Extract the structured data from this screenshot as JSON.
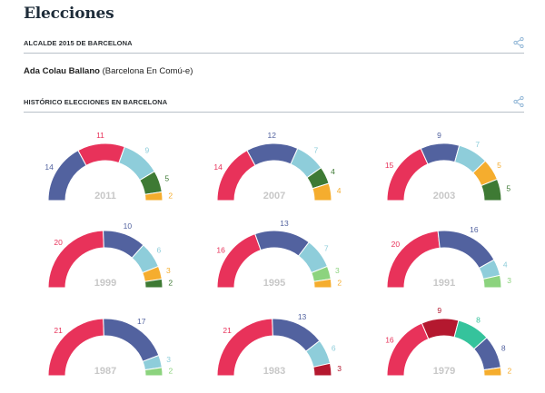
{
  "page": {
    "title": "Elecciones",
    "section1_label": "ALCALDE 2015 DE BARCELONA",
    "mayor_name": "Ada Colau Ballano",
    "mayor_party": "(Barcelona En Comú-e)",
    "section2_label": "HISTÓRICO ELECCIONES EN BARCELONA",
    "share_icon": "share-icon"
  },
  "colors": {
    "red": "#e8325a",
    "blue": "#52629f",
    "lightblue": "#8ecdda",
    "darkgreen": "#3e7a34",
    "orange": "#f5ad2e",
    "green": "#8cd37e",
    "darkred": "#b4182f",
    "teal": "#35c39c",
    "year": "#c8c8c8"
  },
  "chart_data": [
    {
      "type": "pie",
      "title": "2011",
      "seats": [
        {
          "value": 14,
          "color": "blue"
        },
        {
          "value": 11,
          "color": "red"
        },
        {
          "value": 9,
          "color": "lightblue"
        },
        {
          "value": 5,
          "color": "darkgreen"
        },
        {
          "value": 2,
          "color": "orange"
        }
      ]
    },
    {
      "type": "pie",
      "title": "2007",
      "seats": [
        {
          "value": 14,
          "color": "red"
        },
        {
          "value": 12,
          "color": "blue"
        },
        {
          "value": 7,
          "color": "lightblue"
        },
        {
          "value": 4,
          "color": "darkgreen"
        },
        {
          "value": 4,
          "color": "orange"
        }
      ]
    },
    {
      "type": "pie",
      "title": "2003",
      "seats": [
        {
          "value": 15,
          "color": "red"
        },
        {
          "value": 9,
          "color": "blue"
        },
        {
          "value": 7,
          "color": "lightblue"
        },
        {
          "value": 5,
          "color": "orange"
        },
        {
          "value": 5,
          "color": "darkgreen"
        }
      ]
    },
    {
      "type": "pie",
      "title": "1999",
      "seats": [
        {
          "value": 20,
          "color": "red"
        },
        {
          "value": 10,
          "color": "blue"
        },
        {
          "value": 6,
          "color": "lightblue"
        },
        {
          "value": 3,
          "color": "orange"
        },
        {
          "value": 2,
          "color": "darkgreen"
        }
      ]
    },
    {
      "type": "pie",
      "title": "1995",
      "seats": [
        {
          "value": 16,
          "color": "red"
        },
        {
          "value": 13,
          "color": "blue"
        },
        {
          "value": 7,
          "color": "lightblue"
        },
        {
          "value": 3,
          "color": "green"
        },
        {
          "value": 2,
          "color": "orange"
        }
      ]
    },
    {
      "type": "pie",
      "title": "1991",
      "seats": [
        {
          "value": 20,
          "color": "red"
        },
        {
          "value": 16,
          "color": "blue"
        },
        {
          "value": 4,
          "color": "lightblue"
        },
        {
          "value": 3,
          "color": "green"
        }
      ]
    },
    {
      "type": "pie",
      "title": "1987",
      "seats": [
        {
          "value": 21,
          "color": "red"
        },
        {
          "value": 17,
          "color": "blue"
        },
        {
          "value": 3,
          "color": "lightblue"
        },
        {
          "value": 2,
          "color": "green"
        }
      ]
    },
    {
      "type": "pie",
      "title": "1983",
      "seats": [
        {
          "value": 21,
          "color": "red"
        },
        {
          "value": 13,
          "color": "blue"
        },
        {
          "value": 6,
          "color": "lightblue"
        },
        {
          "value": 3,
          "color": "darkred"
        }
      ]
    },
    {
      "type": "pie",
      "title": "1979",
      "seats": [
        {
          "value": 16,
          "color": "red"
        },
        {
          "value": 9,
          "color": "darkred"
        },
        {
          "value": 8,
          "color": "teal"
        },
        {
          "value": 8,
          "color": "blue"
        },
        {
          "value": 2,
          "color": "orange"
        }
      ]
    }
  ]
}
